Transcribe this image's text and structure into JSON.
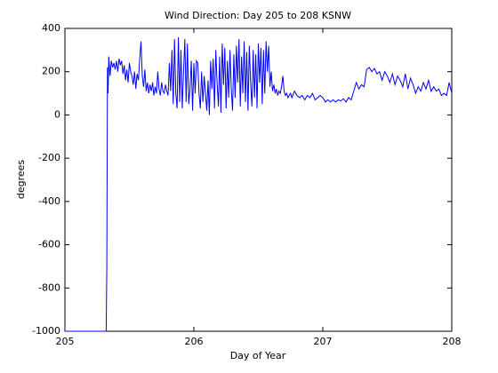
{
  "chart_data": {
    "type": "line",
    "title": "Wind Direction: Day 205 to 208 KSNW",
    "xlabel": "Day of Year",
    "ylabel": "degrees",
    "xlim": [
      205,
      208
    ],
    "xticks": [
      205,
      206,
      207,
      208
    ],
    "ylim": [
      -1000,
      400
    ],
    "yticks": [
      -1000,
      -800,
      -600,
      -400,
      -200,
      0,
      200,
      400
    ],
    "grid": false,
    "series": [
      {
        "color": "#0000ff",
        "x": [
          205,
          205.32,
          205.325,
          205.33,
          205.335,
          205.34,
          205.35,
          205.36,
          205.37,
          205.38,
          205.39,
          205.4,
          205.41,
          205.42,
          205.43,
          205.44,
          205.45,
          205.46,
          205.47,
          205.48,
          205.49,
          205.5,
          205.51,
          205.52,
          205.53,
          205.54,
          205.55,
          205.56,
          205.57,
          205.58,
          205.59,
          205.6,
          205.61,
          205.62,
          205.63,
          205.64,
          205.65,
          205.66,
          205.67,
          205.68,
          205.69,
          205.7,
          205.71,
          205.72,
          205.73,
          205.74,
          205.75,
          205.76,
          205.77,
          205.78,
          205.79,
          205.8,
          205.81,
          205.82,
          205.83,
          205.84,
          205.85,
          205.86,
          205.87,
          205.88,
          205.89,
          205.9,
          205.91,
          205.92,
          205.93,
          205.94,
          205.95,
          205.96,
          205.97,
          205.98,
          205.99,
          206,
          206.01,
          206.02,
          206.03,
          206.04,
          206.05,
          206.06,
          206.07,
          206.08,
          206.09,
          206.1,
          206.11,
          206.12,
          206.13,
          206.14,
          206.15,
          206.16,
          206.17,
          206.18,
          206.19,
          206.2,
          206.21,
          206.22,
          206.23,
          206.24,
          206.25,
          206.26,
          206.27,
          206.28,
          206.29,
          206.3,
          206.31,
          206.32,
          206.33,
          206.34,
          206.35,
          206.36,
          206.37,
          206.38,
          206.39,
          206.4,
          206.41,
          206.42,
          206.43,
          206.44,
          206.45,
          206.46,
          206.47,
          206.48,
          206.49,
          206.5,
          206.51,
          206.52,
          206.53,
          206.54,
          206.55,
          206.56,
          206.57,
          206.58,
          206.59,
          206.6,
          206.61,
          206.62,
          206.63,
          206.64,
          206.65,
          206.66,
          206.67,
          206.68,
          206.69,
          206.7,
          206.71,
          206.72,
          206.73,
          206.74,
          206.75,
          206.76,
          206.78,
          206.8,
          206.82,
          206.84,
          206.86,
          206.88,
          206.9,
          206.92,
          206.94,
          206.96,
          206.98,
          207,
          207.02,
          207.04,
          207.06,
          207.08,
          207.1,
          207.12,
          207.14,
          207.16,
          207.18,
          207.2,
          207.22,
          207.24,
          207.26,
          207.28,
          207.3,
          207.32,
          207.34,
          207.36,
          207.38,
          207.4,
          207.42,
          207.44,
          207.46,
          207.48,
          207.5,
          207.52,
          207.54,
          207.56,
          207.58,
          207.6,
          207.62,
          207.64,
          207.66,
          207.68,
          207.7,
          207.72,
          207.74,
          207.76,
          207.78,
          207.8,
          207.82,
          207.84,
          207.86,
          207.88,
          207.9,
          207.92,
          207.94,
          207.96,
          207.98,
          208
        ],
        "values": [
          -1000,
          -1000,
          -700,
          220,
          100,
          270,
          180,
          250,
          220,
          240,
          210,
          250,
          200,
          260,
          230,
          250,
          190,
          230,
          160,
          210,
          150,
          240,
          200,
          180,
          140,
          200,
          120,
          190,
          160,
          260,
          340,
          180,
          130,
          210,
          110,
          150,
          100,
          140,
          110,
          150,
          90,
          130,
          100,
          200,
          120,
          90,
          150,
          110,
          100,
          140,
          110,
          90,
          240,
          110,
          300,
          50,
          350,
          100,
          30,
          360,
          60,
          300,
          30,
          200,
          350,
          60,
          330,
          50,
          120,
          250,
          20,
          240,
          100,
          250,
          240,
          100,
          30,
          200,
          60,
          180,
          100,
          20,
          160,
          0,
          250,
          120,
          260,
          30,
          300,
          150,
          40,
          270,
          10,
          330,
          140,
          310,
          30,
          250,
          80,
          300,
          120,
          20,
          280,
          80,
          320,
          150,
          350,
          40,
          270,
          100,
          340,
          60,
          290,
          20,
          320,
          150,
          40,
          300,
          80,
          280,
          30,
          330,
          150,
          310,
          50,
          300,
          100,
          340,
          200,
          320,
          130,
          200,
          110,
          140,
          100,
          120,
          90,
          110,
          100,
          130,
          180,
          110,
          90,
          100,
          80,
          90,
          100,
          80,
          110,
          90,
          80,
          90,
          70,
          90,
          80,
          100,
          70,
          80,
          90,
          80,
          60,
          70,
          60,
          70,
          60,
          70,
          65,
          75,
          60,
          80,
          70,
          110,
          150,
          120,
          140,
          130,
          210,
          220,
          200,
          215,
          190,
          200,
          160,
          200,
          180,
          150,
          190,
          140,
          180,
          160,
          130,
          190,
          120,
          170,
          140,
          100,
          130,
          110,
          150,
          120,
          160,
          110,
          130,
          110,
          120,
          90,
          100,
          90,
          150,
          100
        ]
      }
    ]
  }
}
